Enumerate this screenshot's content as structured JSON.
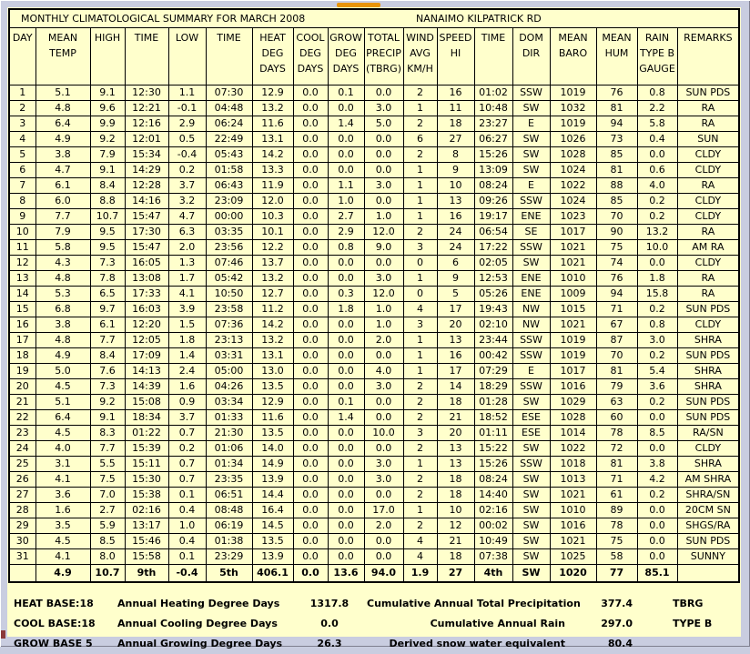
{
  "title": {
    "report": "MONTHLY CLIMATOLOGICAL SUMMARY FOR MARCH 2008",
    "station": "NANAIMO KILPATRICK RD"
  },
  "colors": {
    "page_bg": "#ffffcc",
    "frame_bg": "#c9cde0",
    "accent_orange": "#e89409",
    "grid_line": "#000000"
  },
  "table": {
    "columns": [
      [
        "DAY"
      ],
      [
        "MEAN",
        "TEMP"
      ],
      [
        "HIGH"
      ],
      [
        "TIME"
      ],
      [
        "LOW"
      ],
      [
        "TIME"
      ],
      [
        "HEAT",
        "DEG",
        "DAYS"
      ],
      [
        "COOL",
        "DEG",
        "DAYS"
      ],
      [
        "GROW",
        "DEG",
        "DAYS"
      ],
      [
        "TOTAL",
        "PRECIP",
        "(TBRG)"
      ],
      [
        "WIND",
        "AVG",
        "KM/H"
      ],
      [
        "SPEED",
        "HI"
      ],
      [
        "TIME"
      ],
      [
        "DOM",
        "DIR"
      ],
      [
        "MEAN",
        "BARO"
      ],
      [
        "MEAN",
        "HUM"
      ],
      [
        "RAIN",
        "TYPE B",
        "GAUGE"
      ],
      [
        "REMARKS"
      ]
    ],
    "rows": [
      [
        "1",
        "5.1",
        "9.1",
        "12:30",
        "1.1",
        "07:30",
        "12.9",
        "0.0",
        "0.1",
        "0.0",
        "2",
        "16",
        "01:02",
        "SSW",
        "1019",
        "76",
        "0.8",
        "SUN PDS"
      ],
      [
        "2",
        "4.8",
        "9.6",
        "12:21",
        "-0.1",
        "04:48",
        "13.2",
        "0.0",
        "0.0",
        "3.0",
        "1",
        "11",
        "10:48",
        "SW",
        "1032",
        "81",
        "2.2",
        "RA"
      ],
      [
        "3",
        "6.4",
        "9.9",
        "12:16",
        "2.9",
        "06:24",
        "11.6",
        "0.0",
        "1.4",
        "5.0",
        "2",
        "18",
        "23:27",
        "E",
        "1019",
        "94",
        "5.8",
        "RA"
      ],
      [
        "4",
        "4.9",
        "9.2",
        "12:01",
        "0.5",
        "22:49",
        "13.1",
        "0.0",
        "0.0",
        "0.0",
        "6",
        "27",
        "06:27",
        "SW",
        "1026",
        "73",
        "0.4",
        "SUN"
      ],
      [
        "5",
        "3.8",
        "7.9",
        "15:34",
        "-0.4",
        "05:43",
        "14.2",
        "0.0",
        "0.0",
        "0.0",
        "2",
        "8",
        "15:26",
        "SW",
        "1028",
        "85",
        "0.0",
        "CLDY"
      ],
      [
        "6",
        "4.7",
        "9.1",
        "14:29",
        "0.2",
        "01:58",
        "13.3",
        "0.0",
        "0.0",
        "0.0",
        "1",
        "9",
        "13:09",
        "SW",
        "1024",
        "81",
        "0.6",
        "CLDY"
      ],
      [
        "7",
        "6.1",
        "8.4",
        "12:28",
        "3.7",
        "06:43",
        "11.9",
        "0.0",
        "1.1",
        "3.0",
        "1",
        "10",
        "08:24",
        "E",
        "1022",
        "88",
        "4.0",
        "RA"
      ],
      [
        "8",
        "6.0",
        "8.8",
        "14:16",
        "3.2",
        "23:09",
        "12.0",
        "0.0",
        "1.0",
        "0.0",
        "1",
        "13",
        "09:26",
        "SSW",
        "1024",
        "85",
        "0.2",
        "CLDY"
      ],
      [
        "9",
        "7.7",
        "10.7",
        "15:47",
        "4.7",
        "00:00",
        "10.3",
        "0.0",
        "2.7",
        "1.0",
        "1",
        "16",
        "19:17",
        "ENE",
        "1023",
        "70",
        "0.2",
        "CLDY"
      ],
      [
        "10",
        "7.9",
        "9.5",
        "17:30",
        "6.3",
        "03:35",
        "10.1",
        "0.0",
        "2.9",
        "12.0",
        "2",
        "24",
        "06:54",
        "SE",
        "1017",
        "90",
        "13.2",
        "RA"
      ],
      [
        "11",
        "5.8",
        "9.5",
        "15:47",
        "2.0",
        "23:56",
        "12.2",
        "0.0",
        "0.8",
        "9.0",
        "3",
        "24",
        "17:22",
        "SSW",
        "1021",
        "75",
        "10.0",
        "AM RA"
      ],
      [
        "12",
        "4.3",
        "7.3",
        "16:05",
        "1.3",
        "07:46",
        "13.7",
        "0.0",
        "0.0",
        "0.0",
        "0",
        "6",
        "02:05",
        "SW",
        "1021",
        "74",
        "0.0",
        "CLDY"
      ],
      [
        "13",
        "4.8",
        "7.8",
        "13:08",
        "1.7",
        "05:42",
        "13.2",
        "0.0",
        "0.0",
        "3.0",
        "1",
        "9",
        "12:53",
        "ENE",
        "1010",
        "76",
        "1.8",
        "RA"
      ],
      [
        "14",
        "5.3",
        "6.5",
        "17:33",
        "4.1",
        "10:50",
        "12.7",
        "0.0",
        "0.3",
        "12.0",
        "0",
        "5",
        "05:26",
        "ENE",
        "1009",
        "94",
        "15.8",
        "RA"
      ],
      [
        "15",
        "6.8",
        "9.7",
        "16:03",
        "3.9",
        "23:58",
        "11.2",
        "0.0",
        "1.8",
        "1.0",
        "4",
        "17",
        "19:43",
        "NW",
        "1015",
        "71",
        "0.2",
        "SUN PDS"
      ],
      [
        "16",
        "3.8",
        "6.1",
        "12:20",
        "1.5",
        "07:36",
        "14.2",
        "0.0",
        "0.0",
        "1.0",
        "3",
        "20",
        "02:10",
        "NW",
        "1021",
        "67",
        "0.8",
        "CLDY"
      ],
      [
        "17",
        "4.8",
        "7.7",
        "12:05",
        "1.8",
        "23:13",
        "13.2",
        "0.0",
        "0.0",
        "2.0",
        "1",
        "13",
        "23:44",
        "SSW",
        "1019",
        "87",
        "3.0",
        "SHRA"
      ],
      [
        "18",
        "4.9",
        "8.4",
        "17:09",
        "1.4",
        "03:31",
        "13.1",
        "0.0",
        "0.0",
        "0.0",
        "1",
        "16",
        "00:42",
        "SSW",
        "1019",
        "70",
        "0.2",
        "SUN PDS"
      ],
      [
        "19",
        "5.0",
        "7.6",
        "14:13",
        "2.4",
        "05:00",
        "13.0",
        "0.0",
        "0.0",
        "4.0",
        "1",
        "17",
        "07:29",
        "E",
        "1017",
        "81",
        "5.4",
        "SHRA"
      ],
      [
        "20",
        "4.5",
        "7.3",
        "14:39",
        "1.6",
        "04:26",
        "13.5",
        "0.0",
        "0.0",
        "3.0",
        "2",
        "14",
        "18:29",
        "SSW",
        "1016",
        "79",
        "3.6",
        "SHRA"
      ],
      [
        "21",
        "5.1",
        "9.2",
        "15:08",
        "0.9",
        "03:34",
        "12.9",
        "0.0",
        "0.1",
        "0.0",
        "2",
        "18",
        "01:28",
        "SW",
        "1029",
        "63",
        "0.2",
        "SUN PDS"
      ],
      [
        "22",
        "6.4",
        "9.1",
        "18:34",
        "3.7",
        "01:33",
        "11.6",
        "0.0",
        "1.4",
        "0.0",
        "2",
        "21",
        "18:52",
        "ESE",
        "1028",
        "60",
        "0.0",
        "SUN PDS"
      ],
      [
        "23",
        "4.5",
        "8.3",
        "01:22",
        "0.7",
        "21:30",
        "13.5",
        "0.0",
        "0.0",
        "10.0",
        "3",
        "20",
        "01:11",
        "ESE",
        "1014",
        "78",
        "8.5",
        "RA/SN"
      ],
      [
        "24",
        "4.0",
        "7.7",
        "15:39",
        "0.2",
        "01:06",
        "14.0",
        "0.0",
        "0.0",
        "0.0",
        "2",
        "13",
        "15:22",
        "SW",
        "1022",
        "72",
        "0.0",
        "CLDY"
      ],
      [
        "25",
        "3.1",
        "5.5",
        "15:11",
        "0.7",
        "01:34",
        "14.9",
        "0.0",
        "0.0",
        "3.0",
        "1",
        "13",
        "15:26",
        "SSW",
        "1018",
        "81",
        "3.8",
        "SHRA"
      ],
      [
        "26",
        "4.1",
        "7.5",
        "15:30",
        "0.7",
        "23:35",
        "13.9",
        "0.0",
        "0.0",
        "3.0",
        "2",
        "18",
        "08:24",
        "SW",
        "1013",
        "71",
        "4.2",
        "AM SHRA"
      ],
      [
        "27",
        "3.6",
        "7.0",
        "15:38",
        "0.1",
        "06:51",
        "14.4",
        "0.0",
        "0.0",
        "0.0",
        "2",
        "18",
        "14:40",
        "SW",
        "1021",
        "61",
        "0.2",
        "SHRA/SN"
      ],
      [
        "28",
        "1.6",
        "2.7",
        "02:16",
        "0.4",
        "08:48",
        "16.4",
        "0.0",
        "0.0",
        "17.0",
        "1",
        "10",
        "02:16",
        "SW",
        "1010",
        "89",
        "0.0",
        "20CM SN"
      ],
      [
        "29",
        "3.5",
        "5.9",
        "13:17",
        "1.0",
        "06:19",
        "14.5",
        "0.0",
        "0.0",
        "2.0",
        "2",
        "12",
        "00:02",
        "SW",
        "1016",
        "78",
        "0.0",
        "SHGS/RA"
      ],
      [
        "30",
        "4.5",
        "8.5",
        "15:46",
        "0.4",
        "01:38",
        "13.5",
        "0.0",
        "0.0",
        "0.0",
        "4",
        "21",
        "10:49",
        "SW",
        "1021",
        "75",
        "0.0",
        "SUN PDS"
      ],
      [
        "31",
        "4.1",
        "8.0",
        "15:58",
        "0.1",
        "23:29",
        "13.9",
        "0.0",
        "0.0",
        "0.0",
        "4",
        "18",
        "07:38",
        "SW",
        "1025",
        "58",
        "0.0",
        "SUNNY"
      ]
    ],
    "summary": [
      "",
      "4.9",
      "10.7",
      "9th",
      "-0.4",
      "5th",
      "406.1",
      "0.0",
      "13.6",
      "94.0",
      "1.9",
      "27",
      "4th",
      "SW",
      "1020",
      "77",
      "85.1",
      ""
    ]
  },
  "footer": {
    "rows": [
      {
        "base": "HEAT BASE:18",
        "label": "Annual Heating Degree Days",
        "value": "1317.8",
        "label2": "Cumulative Annual Total Precipitation",
        "value2": "377.4",
        "note": "TBRG"
      },
      {
        "base": "COOL BASE:18",
        "label": "Annual Cooling Degree Days",
        "value": "0.0",
        "label2": "Cumulative Annual Rain",
        "value2": "297.0",
        "note": "TYPE B"
      },
      {
        "base": "GROW BASE 5",
        "label": "Annual Growing Degree Days",
        "value": "26.3",
        "label2": "Derived snow water equivalent",
        "value2": "80.4",
        "note": ""
      }
    ]
  }
}
